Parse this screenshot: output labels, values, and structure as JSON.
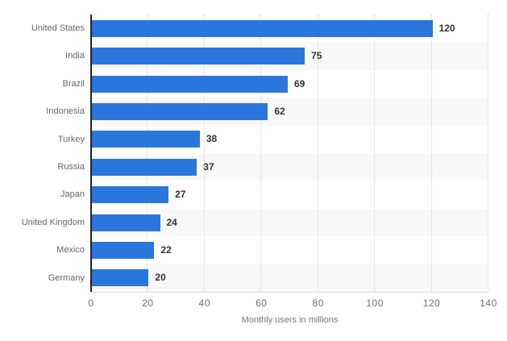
{
  "chart_data": {
    "type": "bar",
    "orientation": "horizontal",
    "title": "",
    "categories": [
      "United States",
      "India",
      "Brazil",
      "Indonesia",
      "Turkey",
      "Russia",
      "Japan",
      "United Kingdom",
      "Mexico",
      "Germany"
    ],
    "values": [
      120,
      75,
      69,
      62,
      38,
      37,
      27,
      24,
      22,
      20
    ],
    "value_labels": [
      "120",
      "75",
      "69",
      "62",
      "38",
      "37",
      "27",
      "24",
      "22",
      "20"
    ],
    "xlabel": "Monthly users in millions",
    "ylabel": "",
    "xlim": [
      0,
      140
    ],
    "xticks": [
      0,
      20,
      40,
      60,
      80,
      100,
      120,
      140
    ],
    "grid": "vertical dotted gridlines at each x tick",
    "legend": "none",
    "row_striping": "alternating, even rows white / odd rows light gray",
    "colors": {
      "bar": "#2b76dc",
      "stripe": "#f8f8f8",
      "gridline": "#d4d4d4",
      "axis_line": "#222222",
      "category_label": "#666666",
      "value_label": "#333333",
      "tick_label": "#6e6e6e",
      "axis_title": "#757575",
      "background": "#ffffff"
    }
  }
}
